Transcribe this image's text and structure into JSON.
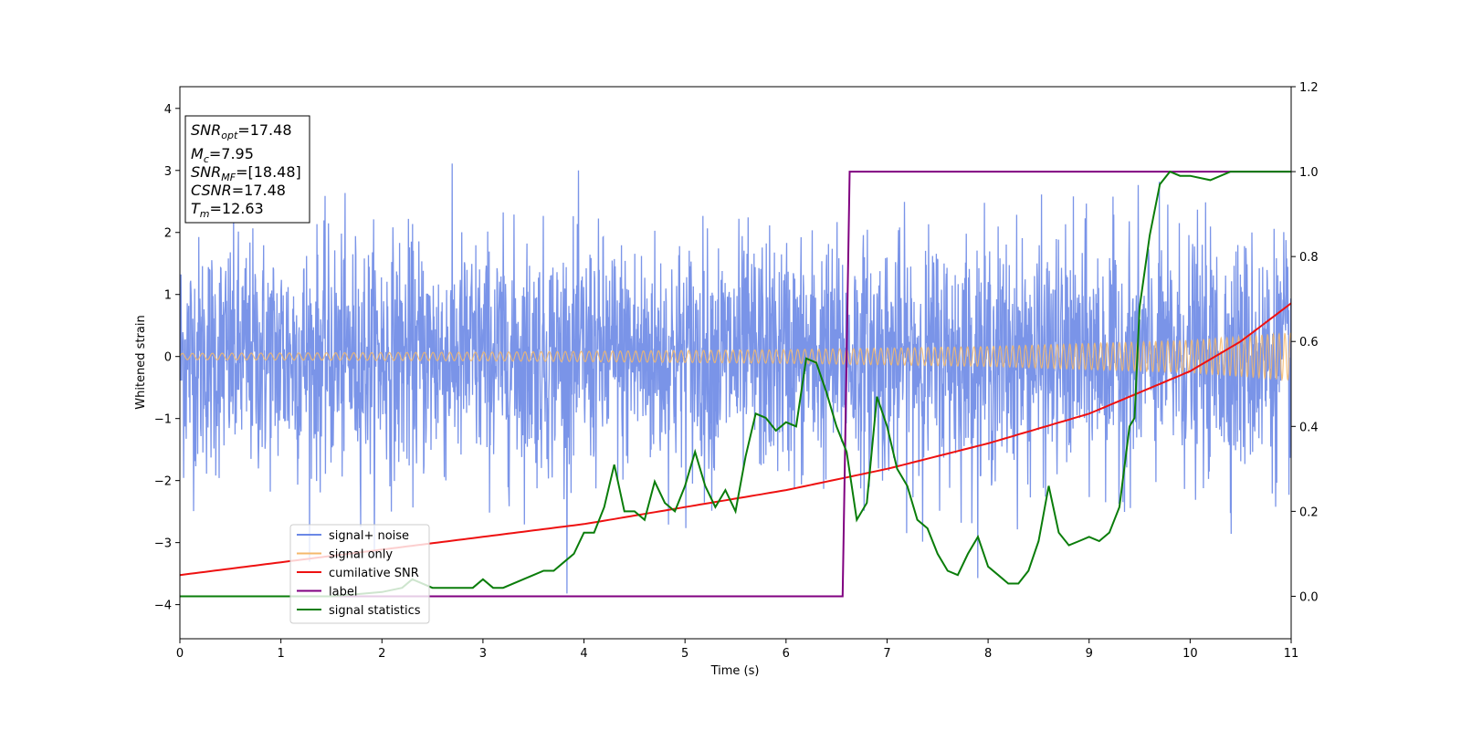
{
  "chart_data": {
    "type": "line",
    "title": "",
    "xlabel": "Time (s)",
    "ylabel": "Whitened strain",
    "y2label": "",
    "xlim": [
      0,
      11
    ],
    "ylim": [
      -4.55,
      4.35
    ],
    "y2lim": [
      -0.1,
      1.2
    ],
    "grid": false,
    "legend_position": "lower-left",
    "x_ticks": [
      "0",
      "1",
      "2",
      "3",
      "4",
      "5",
      "6",
      "7",
      "8",
      "9",
      "10",
      "11"
    ],
    "y_ticks": [
      "4",
      "3",
      "2",
      "1",
      "0",
      "−1",
      "−2",
      "−3",
      "−4"
    ],
    "y2_ticks": [
      "1.2",
      "1.0",
      "0.8",
      "0.6",
      "0.4",
      "0.2",
      "0.0"
    ],
    "annotation": {
      "line1": {
        "base": "SNR",
        "sub": "opt",
        "rest": "=17.48"
      },
      "line2": {
        "base": "M",
        "sub": "c",
        "rest": "=7.95"
      },
      "line3": {
        "base": "SNR",
        "sub": "MF",
        "rest": "=[18.48]"
      },
      "line4": {
        "base": "CSNR",
        "sub": "",
        "rest": "=17.48"
      },
      "line5": {
        "base": "T",
        "sub": "m",
        "rest": "=12.63"
      }
    },
    "series": [
      {
        "name": "signal+ noise",
        "color": "#6b88e6",
        "axis": "left",
        "kind": "noisy-band",
        "rms": 0.95,
        "max_abs": 3.95
      },
      {
        "name": "signal only",
        "color": "#f5b96b",
        "axis": "left",
        "kind": "chirp",
        "amplitude": {
          "x": [
            0,
            3,
            6,
            8,
            10,
            11
          ],
          "y": [
            0.05,
            0.07,
            0.11,
            0.16,
            0.26,
            0.38
          ]
        }
      },
      {
        "name": "cumilative SNR",
        "color": "#ee1111",
        "axis": "right",
        "x": [
          0,
          1,
          2,
          3,
          4,
          5,
          6,
          7,
          8,
          9,
          10,
          10.5,
          11
        ],
        "y": [
          0.05,
          0.08,
          0.11,
          0.14,
          0.17,
          0.21,
          0.25,
          0.3,
          0.36,
          0.43,
          0.53,
          0.6,
          0.69
        ]
      },
      {
        "name": "label",
        "color": "#800080",
        "axis": "right",
        "x": [
          0,
          6.56,
          6.63,
          11
        ],
        "y": [
          0.0,
          0.0,
          1.0,
          1.0
        ]
      },
      {
        "name": "signal statistics",
        "color": "#0a7d0a",
        "axis": "right",
        "x": [
          0,
          0.5,
          1,
          1.5,
          2,
          2.2,
          2.3,
          2.5,
          2.7,
          2.9,
          3.0,
          3.1,
          3.2,
          3.4,
          3.5,
          3.6,
          3.7,
          3.8,
          3.9,
          4.0,
          4.1,
          4.2,
          4.3,
          4.4,
          4.5,
          4.6,
          4.7,
          4.8,
          4.9,
          5.0,
          5.1,
          5.2,
          5.3,
          5.4,
          5.5,
          5.6,
          5.7,
          5.8,
          5.9,
          6.0,
          6.1,
          6.2,
          6.3,
          6.4,
          6.5,
          6.6,
          6.7,
          6.8,
          6.9,
          7.0,
          7.1,
          7.2,
          7.3,
          7.4,
          7.5,
          7.6,
          7.7,
          7.8,
          7.9,
          8.0,
          8.1,
          8.2,
          8.3,
          8.4,
          8.5,
          8.6,
          8.7,
          8.8,
          8.9,
          9.0,
          9.1,
          9.2,
          9.3,
          9.4,
          9.45,
          9.5,
          9.6,
          9.7,
          9.8,
          9.9,
          10.0,
          10.2,
          10.4,
          10.6,
          11
        ],
        "y": [
          0.0,
          0.0,
          0.0,
          0.0,
          0.01,
          0.02,
          0.04,
          0.02,
          0.02,
          0.02,
          0.04,
          0.02,
          0.02,
          0.04,
          0.05,
          0.06,
          0.06,
          0.08,
          0.1,
          0.15,
          0.15,
          0.21,
          0.31,
          0.2,
          0.2,
          0.18,
          0.27,
          0.22,
          0.2,
          0.26,
          0.34,
          0.26,
          0.21,
          0.25,
          0.2,
          0.33,
          0.43,
          0.42,
          0.39,
          0.41,
          0.4,
          0.56,
          0.55,
          0.48,
          0.4,
          0.34,
          0.18,
          0.22,
          0.47,
          0.4,
          0.3,
          0.26,
          0.18,
          0.16,
          0.1,
          0.06,
          0.05,
          0.1,
          0.14,
          0.07,
          0.05,
          0.03,
          0.03,
          0.06,
          0.13,
          0.26,
          0.15,
          0.12,
          0.13,
          0.14,
          0.13,
          0.15,
          0.21,
          0.4,
          0.42,
          0.68,
          0.85,
          0.97,
          1.0,
          0.99,
          0.99,
          0.98,
          1.0,
          1.0,
          1.0
        ]
      }
    ]
  }
}
